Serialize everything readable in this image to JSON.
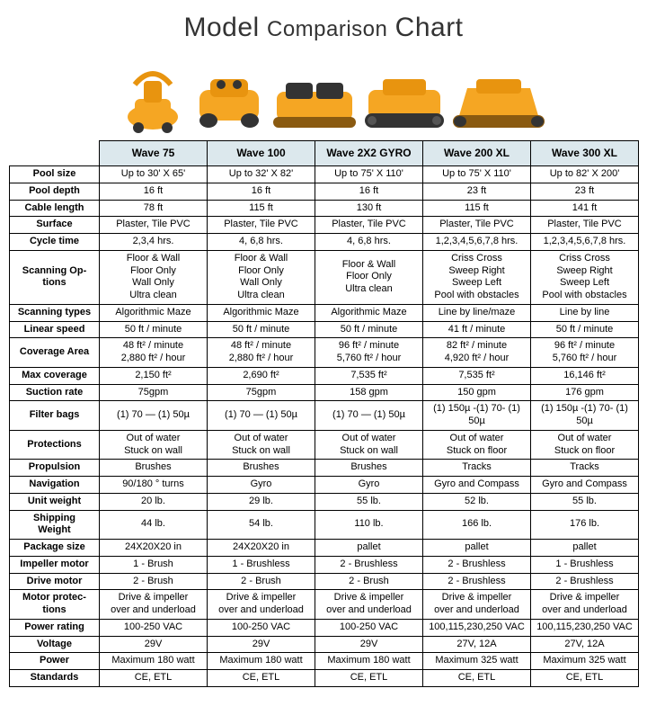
{
  "title_parts": {
    "model": "Model",
    "comparison": "Comparison",
    "chart": "Chart"
  },
  "colors": {
    "header_bg": "#dce8ed",
    "border": "#000000",
    "product_orange": "#f5a623",
    "product_dark": "#8a5a10"
  },
  "models": [
    "Wave 75",
    "Wave 100",
    "Wave 2X2 GYRO",
    "Wave 200 XL",
    "Wave 300 XL"
  ],
  "rows": [
    {
      "label": "Pool size",
      "values": [
        "Up to 30' X 65'",
        "Up to 32' X 82'",
        "Up to 75' X 110'",
        "Up to 75' X 110'",
        "Up to 82' X 200'"
      ]
    },
    {
      "label": "Pool depth",
      "values": [
        "16 ft",
        "16 ft",
        "16 ft",
        "23 ft",
        "23 ft"
      ]
    },
    {
      "label": "Cable length",
      "values": [
        "78 ft",
        "115 ft",
        "130 ft",
        "115 ft",
        "141 ft"
      ]
    },
    {
      "label": "Surface",
      "values": [
        "Plaster, Tile PVC",
        "Plaster, Tile PVC",
        "Plaster, Tile PVC",
        "Plaster, Tile PVC",
        "Plaster, Tile PVC"
      ]
    },
    {
      "label": "Cycle time",
      "values": [
        "2,3,4 hrs.",
        "4, 6,8 hrs.",
        "4, 6,8 hrs.",
        "1,2,3,4,5,6,7,8 hrs.",
        "1,2,3,4,5,6,7,8 hrs."
      ]
    },
    {
      "label": "Scanning Op-\ntions",
      "values": [
        "Floor & Wall\nFloor Only\nWall Only\nUltra clean",
        "Floor & Wall\nFloor Only\nWall Only\nUltra clean",
        "Floor & Wall\nFloor Only\nUltra clean",
        "Criss Cross\nSweep Right\nSweep Left\nPool with obstacles",
        "Criss Cross\nSweep Right\nSweep Left\nPool with obstacles"
      ]
    },
    {
      "label": "Scanning types",
      "values": [
        "Algorithmic Maze",
        "Algorithmic Maze",
        "Algorithmic Maze",
        "Line by line/maze",
        "Line by line"
      ]
    },
    {
      "label": "Linear speed",
      "values": [
        "50 ft / minute",
        "50 ft / minute",
        "50 ft / minute",
        "41 ft / minute",
        "50 ft / minute"
      ]
    },
    {
      "label": "Coverage Area",
      "values": [
        "48 ft² / minute\n2,880 ft² / hour",
        "48 ft² / minute\n2,880 ft² / hour",
        "96 ft² / minute\n5,760 ft² / hour",
        "82 ft² / minute\n4,920 ft² / hour",
        "96 ft² / minute\n5,760 ft² / hour"
      ]
    },
    {
      "label": "Max coverage",
      "values": [
        "2,150 ft²",
        "2,690 ft²",
        "7,535 ft²",
        "7,535 ft²",
        "16,146 ft²"
      ]
    },
    {
      "label": "Suction rate",
      "values": [
        "75gpm",
        "75gpm",
        "158 gpm",
        "150 gpm",
        "176 gpm"
      ]
    },
    {
      "label": "Filter bags",
      "values": [
        "(1) 70 — (1) 50µ",
        "(1) 70 — (1) 50µ",
        "(1) 70 — (1) 50µ",
        "(1) 150µ -(1) 70- (1) 50µ",
        "(1) 150µ -(1) 70- (1) 50µ"
      ]
    },
    {
      "label": "Protections",
      "values": [
        "Out of water\nStuck on wall",
        "Out of water\nStuck on wall",
        "Out of water\nStuck on wall",
        "Out of water\nStuck on floor",
        "Out of water\nStuck on floor"
      ]
    },
    {
      "label": "Propulsion",
      "values": [
        "Brushes",
        "Brushes",
        "Brushes",
        "Tracks",
        "Tracks"
      ]
    },
    {
      "label": "Navigation",
      "values": [
        "90/180 ° turns",
        "Gyro",
        "Gyro",
        "Gyro and Compass",
        "Gyro and Compass"
      ]
    },
    {
      "label": "Unit weight",
      "values": [
        "20 lb.",
        "29 lb.",
        "55 lb.",
        "52 lb.",
        "55 lb."
      ]
    },
    {
      "label": "Shipping\nWeight",
      "values": [
        "44 lb.",
        "54 lb.",
        "110 lb.",
        "166 lb.",
        "176 lb."
      ]
    },
    {
      "label": "Package size",
      "values": [
        "24X20X20 in",
        "24X20X20 in",
        "pallet",
        "pallet",
        "pallet"
      ]
    },
    {
      "label": "Impeller motor",
      "values": [
        "1 - Brush",
        "1 - Brushless",
        "2 - Brushless",
        "2 - Brushless",
        "1 - Brushless"
      ]
    },
    {
      "label": "Drive motor",
      "values": [
        "2 - Brush",
        "2 - Brush",
        "2 - Brush",
        "2 - Brushless",
        "2 - Brushless"
      ]
    },
    {
      "label": "Motor protec-\ntions",
      "values": [
        "Drive & impeller\nover and underload",
        "Drive & impeller\nover and underload",
        "Drive & impeller\nover and underload",
        "Drive & impeller\nover and underload",
        "Drive & impeller\nover and underload"
      ]
    },
    {
      "label": "Power rating",
      "values": [
        "100-250 VAC",
        "100-250 VAC",
        "100-250 VAC",
        "100,115,230,250 VAC",
        "100,115,230,250 VAC"
      ]
    },
    {
      "label": "Voltage",
      "values": [
        "29V",
        "29V",
        "29V",
        "27V, 12A",
        "27V, 12A"
      ]
    },
    {
      "label": "Power",
      "values": [
        "Maximum 180 watt",
        "Maximum 180 watt",
        "Maximum 180 watt",
        "Maximum 325 watt",
        "Maximum 325 watt"
      ]
    },
    {
      "label": "Standards",
      "values": [
        "CE, ETL",
        "CE, ETL",
        "CE, ETL",
        "CE, ETL",
        "CE, ETL"
      ]
    }
  ]
}
